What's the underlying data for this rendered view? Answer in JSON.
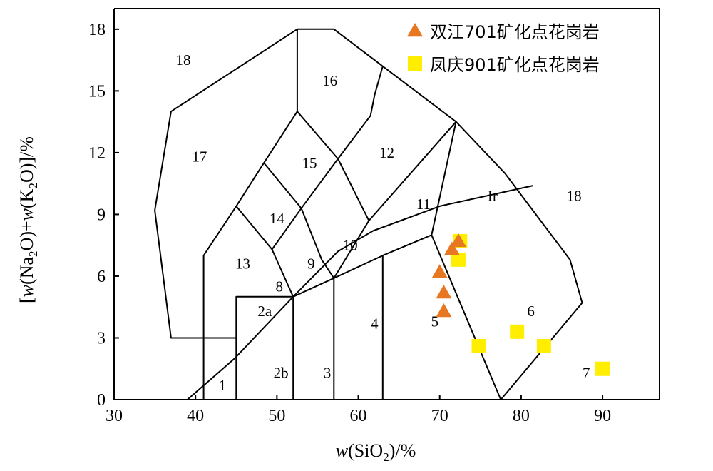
{
  "chart_data": {
    "type": "scatter",
    "xlabel": "w(SiO2)/%",
    "ylabel": "[w(Na2O)+w(K2O)]/%",
    "xlim": [
      30,
      97
    ],
    "ylim": [
      0,
      19
    ],
    "x_ticks": [
      30,
      40,
      50,
      60,
      70,
      80,
      90
    ],
    "y_ticks": [
      0,
      3,
      6,
      9,
      12,
      15,
      18
    ],
    "grid": false,
    "legend_position": "top-right",
    "series": [
      {
        "name": "双江701矿化点花岗岩",
        "marker": "triangle",
        "color": "#e87722",
        "points": [
          {
            "x": 72.3,
            "y": 7.7
          },
          {
            "x": 71.5,
            "y": 7.3
          },
          {
            "x": 70.0,
            "y": 6.2
          },
          {
            "x": 70.5,
            "y": 5.2
          },
          {
            "x": 70.5,
            "y": 4.3
          }
        ]
      },
      {
        "name": "凤庆901矿化点花岗岩",
        "marker": "square",
        "color": "#ffee00",
        "points": [
          {
            "x": 72.5,
            "y": 7.7
          },
          {
            "x": 72.3,
            "y": 6.8
          },
          {
            "x": 74.8,
            "y": 2.6
          },
          {
            "x": 79.5,
            "y": 3.3
          },
          {
            "x": 82.8,
            "y": 2.6
          },
          {
            "x": 90.0,
            "y": 1.5
          }
        ]
      }
    ],
    "field_labels": [
      {
        "text": "18",
        "x": 38.5,
        "y": 16.5
      },
      {
        "text": "17",
        "x": 40.5,
        "y": 11.8
      },
      {
        "text": "16",
        "x": 56.5,
        "y": 15.5
      },
      {
        "text": "15",
        "x": 54.0,
        "y": 11.5
      },
      {
        "text": "12",
        "x": 63.5,
        "y": 12.0
      },
      {
        "text": "14",
        "x": 50.0,
        "y": 8.8
      },
      {
        "text": "13",
        "x": 45.8,
        "y": 6.6
      },
      {
        "text": "11",
        "x": 68.0,
        "y": 9.5
      },
      {
        "text": "Ir",
        "x": 76.5,
        "y": 9.9
      },
      {
        "text": "18",
        "x": 86.5,
        "y": 9.9
      },
      {
        "text": "10",
        "x": 59.0,
        "y": 7.5
      },
      {
        "text": "9",
        "x": 54.2,
        "y": 6.6
      },
      {
        "text": "8",
        "x": 50.3,
        "y": 5.5
      },
      {
        "text": "2a",
        "x": 48.5,
        "y": 4.3
      },
      {
        "text": "4",
        "x": 62.0,
        "y": 3.7
      },
      {
        "text": "5",
        "x": 69.4,
        "y": 3.8
      },
      {
        "text": "6",
        "x": 81.2,
        "y": 4.3
      },
      {
        "text": "1",
        "x": 43.3,
        "y": 0.7
      },
      {
        "text": "2b",
        "x": 50.5,
        "y": 1.3
      },
      {
        "text": "3",
        "x": 56.2,
        "y": 1.3
      },
      {
        "text": "7",
        "x": 88.0,
        "y": 1.3
      }
    ],
    "boundaries": [
      [
        [
          39,
          0
        ],
        [
          44.8,
          2.0
        ],
        [
          52,
          5.0
        ]
      ],
      [
        [
          41,
          0
        ],
        [
          41,
          7.0
        ],
        [
          45,
          9.4
        ],
        [
          48.4,
          11.5
        ],
        [
          52.5,
          14.0
        ],
        [
          52.5,
          18.0
        ],
        [
          57,
          18.0
        ],
        [
          63,
          16.2
        ]
      ],
      [
        [
          45,
          3.0
        ],
        [
          37,
          3.0
        ],
        [
          35,
          9.2
        ],
        [
          37,
          14.0
        ],
        [
          52.5,
          18.0
        ]
      ],
      [
        [
          63,
          16.2
        ],
        [
          72,
          13.5
        ],
        [
          78,
          11.0
        ],
        [
          86,
          6.8
        ],
        [
          87.5,
          4.7
        ],
        [
          77.5,
          0
        ]
      ],
      [
        [
          45,
          0
        ],
        [
          45,
          5.0
        ],
        [
          52,
          5.0
        ],
        [
          52,
          0
        ]
      ],
      [
        [
          57,
          0
        ],
        [
          57,
          5.9
        ],
        [
          63,
          7.0
        ],
        [
          63,
          0
        ]
      ],
      [
        [
          63,
          7.0
        ],
        [
          69,
          8.0
        ],
        [
          77.5,
          0
        ]
      ],
      [
        [
          72,
          13.5
        ],
        [
          69,
          8.0
        ]
      ],
      [
        [
          72,
          13.5
        ],
        [
          61.3,
          8.7
        ],
        [
          57,
          5.9
        ],
        [
          52,
          5.0
        ],
        [
          49.4,
          7.3
        ],
        [
          45,
          9.4
        ]
      ],
      [
        [
          52,
          5.0
        ],
        [
          57.5,
          7.2
        ],
        [
          61.8,
          8.2
        ],
        [
          70,
          9.4
        ],
        [
          81.5,
          10.4
        ]
      ],
      [
        [
          49.4,
          7.3
        ],
        [
          53,
          9.3
        ],
        [
          48.4,
          11.5
        ]
      ],
      [
        [
          53,
          9.3
        ],
        [
          57.5,
          11.7
        ],
        [
          52.5,
          14.0
        ]
      ],
      [
        [
          57.5,
          11.7
        ],
        [
          61.3,
          8.7
        ]
      ],
      [
        [
          53,
          9.3
        ],
        [
          55.5,
          6.8
        ],
        [
          57,
          5.9
        ]
      ],
      [
        [
          57.5,
          11.7
        ],
        [
          61.5,
          13.8
        ],
        [
          62,
          14.8
        ],
        [
          63,
          16.2
        ]
      ]
    ]
  }
}
